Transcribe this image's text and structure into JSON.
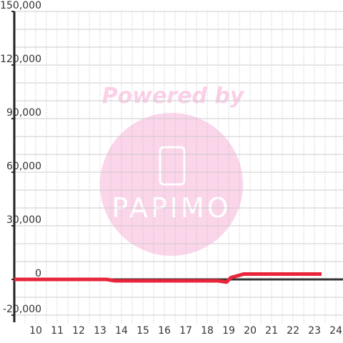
{
  "chart_data": {
    "type": "line",
    "x": [
      9,
      13.3,
      13.7,
      18.5,
      18.9,
      19.1,
      19.7,
      23.33
    ],
    "series": [
      {
        "color": "#e8253a",
        "values": [
          0,
          0,
          -800,
          -800,
          -1500,
          1000,
          3000,
          3000
        ]
      }
    ],
    "xlim": [
      9,
      24.33
    ],
    "ylim": [
      -20000,
      150000
    ],
    "xticks": [
      10,
      11,
      12,
      13,
      14,
      15,
      16,
      17,
      18,
      19,
      20,
      21,
      22,
      23,
      24
    ],
    "xgrid": [
      9.5,
      10,
      10.5,
      11,
      11.5,
      12,
      12.5,
      13,
      13.5,
      14,
      14.5,
      15,
      15.5,
      16,
      16.5,
      17,
      17.5,
      18,
      18.5,
      19,
      19.5,
      20,
      20.5,
      21,
      21.5,
      22,
      22.5,
      23,
      23.5,
      24
    ],
    "yticks": [
      {
        "value": -20000,
        "label": "-20,000"
      },
      0,
      {
        "value": 30000,
        "label": "30,000"
      },
      {
        "value": 60000,
        "label": "60,000"
      },
      {
        "value": 90000,
        "label": "90,000"
      },
      {
        "value": 120000,
        "label": "120,000"
      },
      {
        "value": 150000,
        "label": "150,000"
      }
    ],
    "ygrid": [
      -10000,
      10000,
      20000,
      40000,
      50000,
      70000,
      80000,
      100000,
      110000,
      130000,
      140000
    ],
    "grid": true,
    "annotations": [
      "Powered by",
      "PAPIMO"
    ]
  }
}
